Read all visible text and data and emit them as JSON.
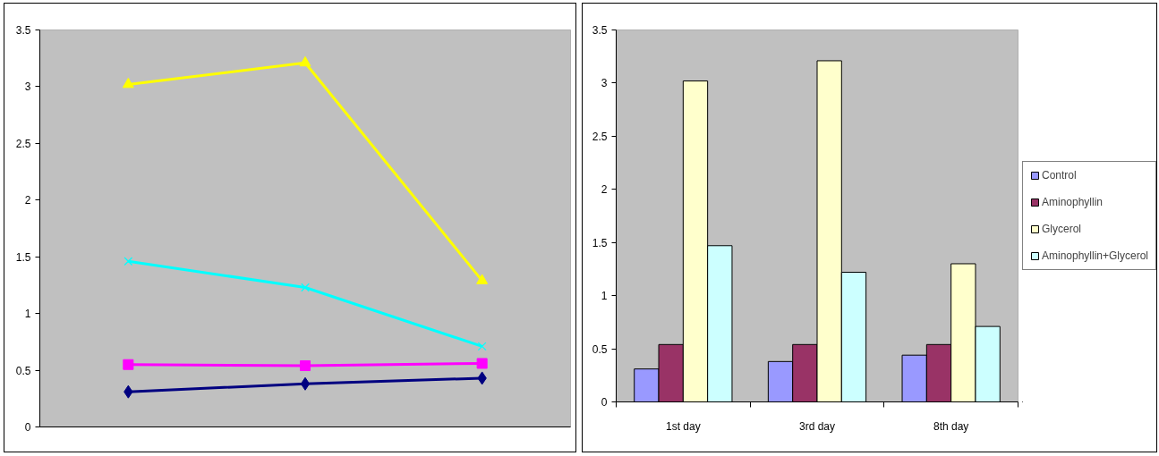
{
  "chart_data": [
    {
      "type": "line",
      "categories": [
        null,
        null,
        null
      ],
      "ylim": [
        0,
        3.5
      ],
      "yticks": [
        0,
        0.5,
        1,
        1.5,
        2,
        2.5,
        3,
        3.5
      ],
      "tick_labels": "y",
      "series": [
        {
          "color": "#000080",
          "marker": "diamond",
          "values": [
            0.31,
            0.38,
            0.43
          ]
        },
        {
          "color": "#ff00ff",
          "marker": "square",
          "values": [
            0.55,
            0.54,
            0.56
          ]
        },
        {
          "color": "#ffff00",
          "marker": "triangle",
          "values": [
            3.02,
            3.21,
            1.29
          ]
        },
        {
          "color": "#00ffff",
          "marker": "cross",
          "values": [
            1.46,
            1.23,
            0.71
          ]
        }
      ]
    },
    {
      "type": "bar",
      "categories": [
        "1st day",
        "3rd day",
        "8th day"
      ],
      "ylim": [
        0,
        3.5
      ],
      "yticks": [
        0,
        0.5,
        1,
        1.5,
        2,
        2.5,
        3,
        3.5
      ],
      "legend": "right",
      "series": [
        {
          "name": "Control",
          "color": "#9999ff",
          "values": [
            0.31,
            0.38,
            0.44
          ]
        },
        {
          "name": "Aminophyllin",
          "color": "#993366",
          "values": [
            0.54,
            0.54,
            0.54
          ]
        },
        {
          "name": "Glycerol",
          "color": "#ffffcc",
          "values": [
            3.02,
            3.21,
            1.3
          ]
        },
        {
          "name": "Aminophyllin+Glycerol",
          "color": "#ccffff",
          "values": [
            1.47,
            1.22,
            0.71
          ]
        }
      ]
    }
  ]
}
